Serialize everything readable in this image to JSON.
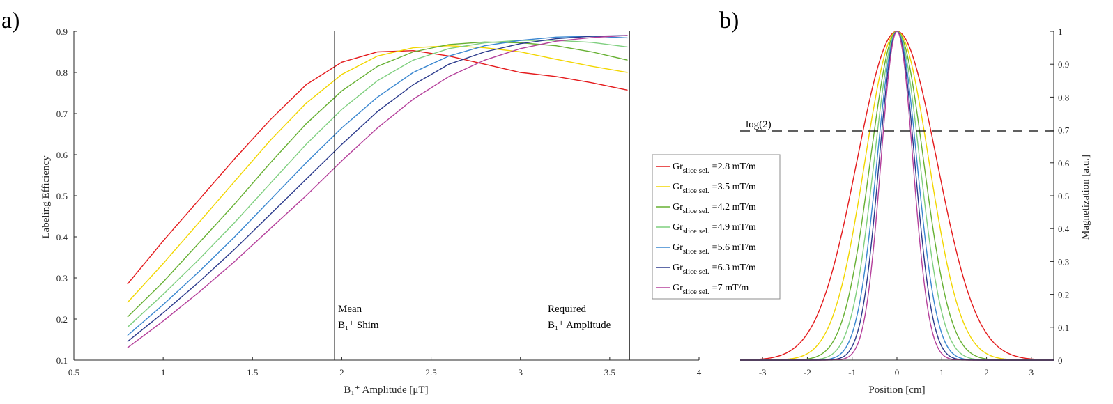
{
  "chart_data": [
    {
      "panel_label": "a)",
      "type": "line",
      "xlabel": "B₁⁺ Amplitude [μT]",
      "ylabel": "Labeling Efficiency",
      "xlim": [
        0.5,
        4
      ],
      "ylim": [
        0.1,
        0.9
      ],
      "xticks": [
        "0.5",
        "1",
        "1.5",
        "2",
        "2.5",
        "3",
        "3.5",
        "4"
      ],
      "yticks": [
        "0.1",
        "0.2",
        "0.3",
        "0.4",
        "0.5",
        "0.6",
        "0.7",
        "0.8",
        "0.9"
      ],
      "grid": false,
      "x": [
        0.8,
        1.0,
        1.2,
        1.4,
        1.6,
        1.8,
        2.0,
        2.2,
        2.4,
        2.6,
        2.8,
        3.0,
        3.2,
        3.4,
        3.6
      ],
      "series": [
        {
          "name": "Gr slice sel. =2.8 mT/m",
          "color": "#e41a1c",
          "values": [
            0.285,
            0.39,
            0.49,
            0.59,
            0.685,
            0.77,
            0.825,
            0.85,
            0.853,
            0.84,
            0.82,
            0.8,
            0.79,
            0.775,
            0.757
          ]
        },
        {
          "name": "Gr slice sel. =3.5 mT/m",
          "color": "#f2d600",
          "values": [
            0.24,
            0.335,
            0.435,
            0.535,
            0.635,
            0.725,
            0.795,
            0.84,
            0.86,
            0.865,
            0.86,
            0.85,
            0.832,
            0.815,
            0.8
          ]
        },
        {
          "name": "Gr slice sel. =4.2 mT/m",
          "color": "#66b032",
          "values": [
            0.205,
            0.29,
            0.385,
            0.48,
            0.58,
            0.675,
            0.755,
            0.815,
            0.85,
            0.868,
            0.874,
            0.872,
            0.865,
            0.85,
            0.83
          ]
        },
        {
          "name": "Gr slice sel. =4.9 mT/m",
          "color": "#7fcf7f",
          "values": [
            0.18,
            0.26,
            0.345,
            0.435,
            0.53,
            0.625,
            0.71,
            0.78,
            0.83,
            0.858,
            0.872,
            0.878,
            0.878,
            0.873,
            0.862
          ]
        },
        {
          "name": "Gr slice sel. =5.6 mT/m",
          "color": "#3a87d0",
          "values": [
            0.16,
            0.235,
            0.315,
            0.4,
            0.49,
            0.58,
            0.665,
            0.74,
            0.8,
            0.84,
            0.865,
            0.878,
            0.886,
            0.888,
            0.884
          ]
        },
        {
          "name": "Gr slice sel. =6.3 mT/m",
          "color": "#2b3a8c",
          "values": [
            0.145,
            0.215,
            0.29,
            0.37,
            0.455,
            0.54,
            0.625,
            0.705,
            0.77,
            0.82,
            0.85,
            0.87,
            0.882,
            0.888,
            0.89
          ]
        },
        {
          "name": "Gr slice sel. =7 mT/m",
          "color": "#b5409b",
          "values": [
            0.13,
            0.195,
            0.265,
            0.34,
            0.42,
            0.5,
            0.585,
            0.665,
            0.735,
            0.79,
            0.83,
            0.858,
            0.876,
            0.885,
            0.89
          ]
        }
      ],
      "vlines": [
        {
          "x": 1.96,
          "label_line1": "Mean",
          "label_line2": "B₁⁺ Shim"
        },
        {
          "x": 3.61,
          "label_line1": "Required",
          "label_line2": "B₁⁺ Amplitude"
        }
      ]
    },
    {
      "panel_label": "b)",
      "type": "line",
      "xlabel": "Position [cm]",
      "ylabel": "Magnetization [a.u.]",
      "xlim": [
        -3.5,
        3.5
      ],
      "ylim": [
        0,
        1
      ],
      "xticks": [
        "-3",
        "-2",
        "-1",
        "0",
        "1",
        "2",
        "3"
      ],
      "yticks": [
        "0",
        "0.1",
        "0.2",
        "0.3",
        "0.4",
        "0.5",
        "0.6",
        "0.7",
        "0.8",
        "0.9",
        "1"
      ],
      "grid": false,
      "y_axis_side": "right",
      "hline": {
        "y": 0.693,
        "label": "log(2)",
        "style": "dashed"
      },
      "profile_shape": "gaussian",
      "series": [
        {
          "color": "#e41a1c",
          "fwhm_cm": 2.1
        },
        {
          "color": "#f2d600",
          "fwhm_cm": 1.68
        },
        {
          "color": "#66b032",
          "fwhm_cm": 1.4
        },
        {
          "color": "#7fcf7f",
          "fwhm_cm": 1.2
        },
        {
          "color": "#3a87d0",
          "fwhm_cm": 1.05
        },
        {
          "color": "#2b3a8c",
          "fwhm_cm": 0.933
        },
        {
          "color": "#b5409b",
          "fwhm_cm": 0.84
        }
      ]
    }
  ],
  "legend": {
    "placement": "between panels",
    "entries": [
      {
        "color": "#e41a1c",
        "base": "Gr",
        "sub": "slice sel.",
        "value": "=2.8 mT/m"
      },
      {
        "color": "#f2d600",
        "base": "Gr",
        "sub": "slice sel.",
        "value": "=3.5 mT/m"
      },
      {
        "color": "#66b032",
        "base": "Gr",
        "sub": "slice sel.",
        "value": "=4.2 mT/m"
      },
      {
        "color": "#7fcf7f",
        "base": "Gr",
        "sub": "slice sel.",
        "value": "=4.9 mT/m"
      },
      {
        "color": "#3a87d0",
        "base": "Gr",
        "sub": "slice sel.",
        "value": "=5.6 mT/m"
      },
      {
        "color": "#2b3a8c",
        "base": "Gr",
        "sub": "slice sel.",
        "value": "=6.3 mT/m"
      },
      {
        "color": "#b5409b",
        "base": "Gr",
        "sub": "slice sel.",
        "value": "=7 mT/m"
      }
    ]
  }
}
